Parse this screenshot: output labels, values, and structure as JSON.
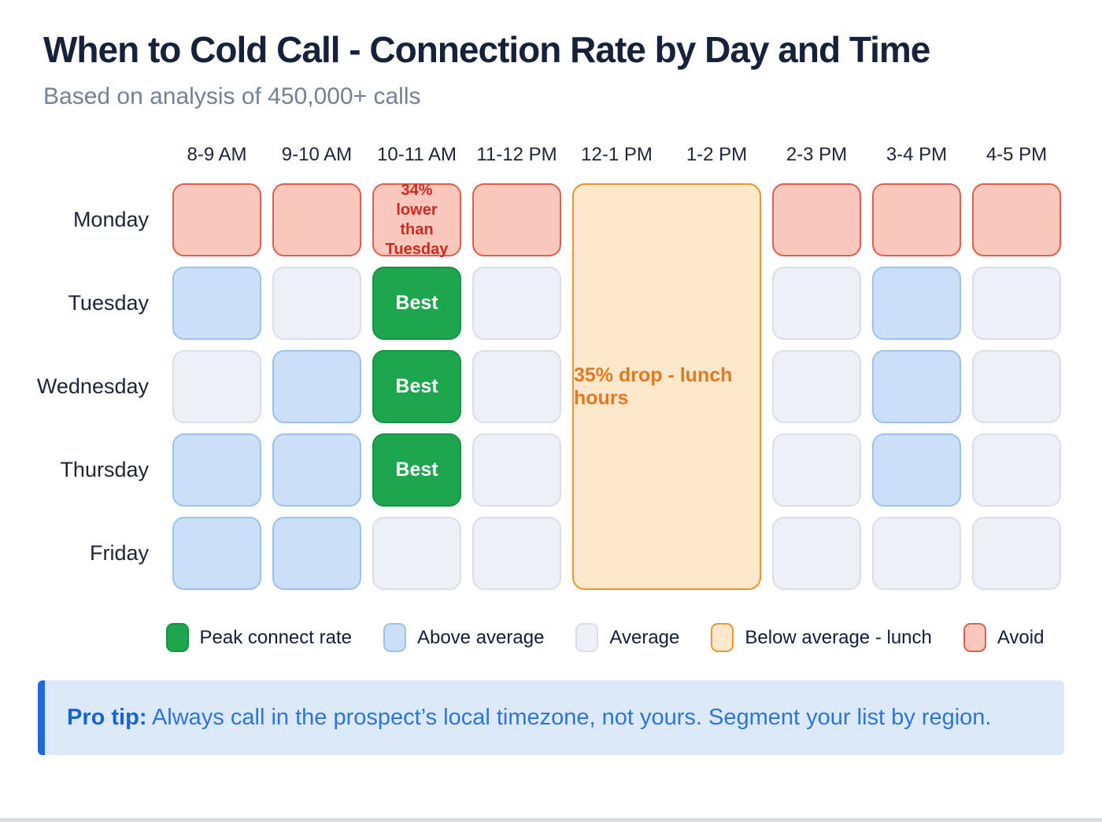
{
  "header": {
    "title": "When to Cold Call - Connection Rate by Day and Time",
    "subtitle": "Based on analysis of 450,000+ calls"
  },
  "chart_data": {
    "type": "heatmap",
    "title": "When to Cold Call - Connection Rate by Day and Time",
    "subtitle": "Based on analysis of 450,000+ calls",
    "x_labels": [
      "8-9 AM",
      "9-10 AM",
      "10-11 AM",
      "11-12 PM",
      "12-1 PM",
      "1-2 PM",
      "2-3 PM",
      "3-4 PM",
      "4-5 PM"
    ],
    "y_labels": [
      "Monday",
      "Tuesday",
      "Wednesday",
      "Thursday",
      "Friday"
    ],
    "cells": [
      [
        {
          "level": "avoid"
        },
        {
          "level": "avoid"
        },
        {
          "level": "avoid",
          "label": "34% lower than Tuesday"
        },
        {
          "level": "avoid"
        },
        {
          "level": "lunch"
        },
        {
          "level": "lunch"
        },
        {
          "level": "avoid"
        },
        {
          "level": "avoid"
        },
        {
          "level": "avoid"
        }
      ],
      [
        {
          "level": "above"
        },
        {
          "level": "average"
        },
        {
          "level": "peak",
          "label": "Best"
        },
        {
          "level": "average"
        },
        {
          "level": "lunch"
        },
        {
          "level": "lunch"
        },
        {
          "level": "average"
        },
        {
          "level": "above"
        },
        {
          "level": "average"
        }
      ],
      [
        {
          "level": "average"
        },
        {
          "level": "above"
        },
        {
          "level": "peak",
          "label": "Best"
        },
        {
          "level": "average"
        },
        {
          "level": "lunch"
        },
        {
          "level": "lunch"
        },
        {
          "level": "average"
        },
        {
          "level": "above"
        },
        {
          "level": "average"
        }
      ],
      [
        {
          "level": "above"
        },
        {
          "level": "above"
        },
        {
          "level": "peak",
          "label": "Best"
        },
        {
          "level": "average"
        },
        {
          "level": "lunch"
        },
        {
          "level": "lunch"
        },
        {
          "level": "average"
        },
        {
          "level": "above"
        },
        {
          "level": "average"
        }
      ],
      [
        {
          "level": "above"
        },
        {
          "level": "above"
        },
        {
          "level": "average"
        },
        {
          "level": "average"
        },
        {
          "level": "lunch"
        },
        {
          "level": "lunch"
        },
        {
          "level": "average"
        },
        {
          "level": "average"
        },
        {
          "level": "average"
        }
      ]
    ],
    "lunch_block": {
      "label": "35% drop - lunch hours",
      "x_start": "12-1 PM",
      "x_end": "1-2 PM",
      "spans_days": [
        "Monday",
        "Tuesday",
        "Wednesday",
        "Thursday",
        "Friday"
      ]
    },
    "legend_position": "bottom",
    "grid": false
  },
  "legend": [
    {
      "level": "peak",
      "label": "Peak connect rate"
    },
    {
      "level": "above",
      "label": "Above average"
    },
    {
      "level": "average",
      "label": "Average"
    },
    {
      "level": "lunch",
      "label": "Below average - lunch"
    },
    {
      "level": "avoid",
      "label": "Avoid"
    }
  ],
  "pro_tip": {
    "label": "Pro tip:",
    "text": " Always call in the prospect’s local timezone, not yours. Segment your list by region."
  },
  "colors": {
    "title": "#16213A",
    "subtitle": "#768093",
    "peak_fill": "#1EA64F",
    "peak_border": "#169244",
    "above_fill": "#CBE0F8",
    "above_border": "#9EC1EB",
    "average_fill": "#EDF0F6",
    "average_border": "#D9DEE7",
    "lunch_fill": "#FDE8CB",
    "lunch_border": "#E9962E",
    "avoid_fill": "#F9C7BC",
    "avoid_border": "#DB604F",
    "avoid_note_text": "#CB2B25",
    "lunch_note_text": "#E0791F",
    "protip_bg": "#DCE9F8",
    "protip_bar": "#2368D8",
    "protip_text": "#2F75D9"
  }
}
